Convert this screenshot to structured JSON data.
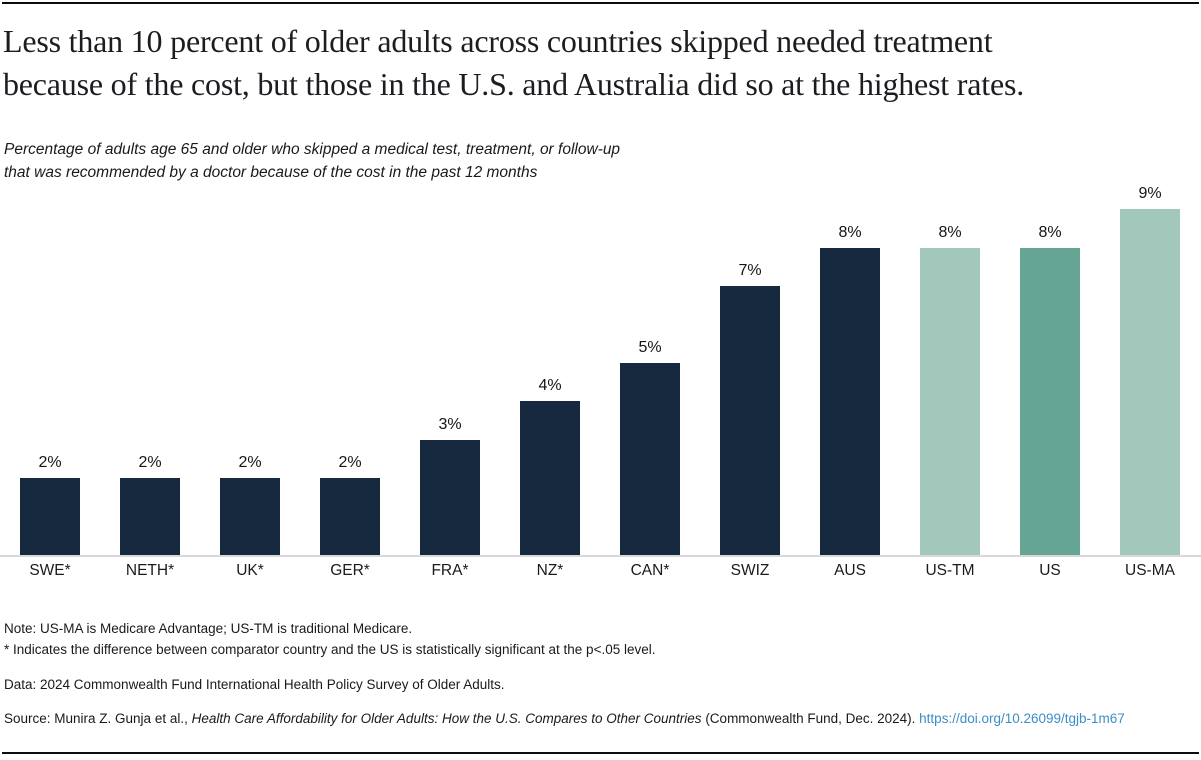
{
  "header": {
    "title_line1": "Less than 10 percent of older adults across countries skipped needed treatment",
    "title_line2": "because of the cost, but those in the U.S. and Australia did so at the highest rates.",
    "subtitle_line1": "Percentage of adults age 65 and older who skipped a medical test, treatment, or follow-up",
    "subtitle_line2": "that was recommended by a doctor because of the cost in the past 12 months"
  },
  "chart_data": {
    "type": "bar",
    "title": "Less than 10 percent of older adults across countries skipped needed treatment because of the cost, but those in the U.S. and Australia did so at the highest rates.",
    "subtitle": "Percentage of adults age 65 and older who skipped a medical test, treatment, or follow-up that was recommended by a doctor because of the cost in the past 12 months",
    "categories": [
      "SWE*",
      "NETH*",
      "UK*",
      "GER*",
      "FRA*",
      "NZ*",
      "CAN*",
      "SWIZ",
      "AUS",
      "US-TM",
      "US",
      "US-MA"
    ],
    "values": [
      2,
      2,
      2,
      2,
      3,
      4,
      5,
      7,
      8,
      8,
      8,
      9
    ],
    "value_labels": [
      "2%",
      "2%",
      "2%",
      "2%",
      "3%",
      "4%",
      "5%",
      "7%",
      "8%",
      "8%",
      "8%",
      "9%"
    ],
    "bar_colors": [
      "#17293e",
      "#17293e",
      "#17293e",
      "#17293e",
      "#17293e",
      "#17293e",
      "#17293e",
      "#17293e",
      "#17293e",
      "#a2c8bb",
      "#64a693",
      "#a2c8bb"
    ],
    "xlabel": "",
    "ylabel": "",
    "ylim": [
      0,
      9.5
    ],
    "grid": false,
    "legend": "none",
    "colors": {
      "comparator_country": "#17293e",
      "us_traditional_medicare": "#a2c8bb",
      "us_overall": "#64a693",
      "us_medicare_advantage": "#a2c8bb"
    }
  },
  "footnotes": {
    "note_line1": "Note: US-MA is Medicare Advantage; US-TM is traditional Medicare.",
    "note_line2": "* Indicates the difference between comparator country and the US is statistically significant at the p<.05 level.",
    "data_line": "Data: 2024 Commonwealth Fund International Health Policy Survey of Older Adults."
  },
  "source": {
    "prefix": "Source: Munira Z. Gunja et al., ",
    "publication_title": "Health Care Affordability for Older Adults: How the U.S. Compares to Other Countries",
    "suffix": " (Commonwealth Fund, Dec. 2024). ",
    "link_text": "https://doi.org/10.26099/tgjb-1m67",
    "link_color": "#3e8ec6"
  }
}
